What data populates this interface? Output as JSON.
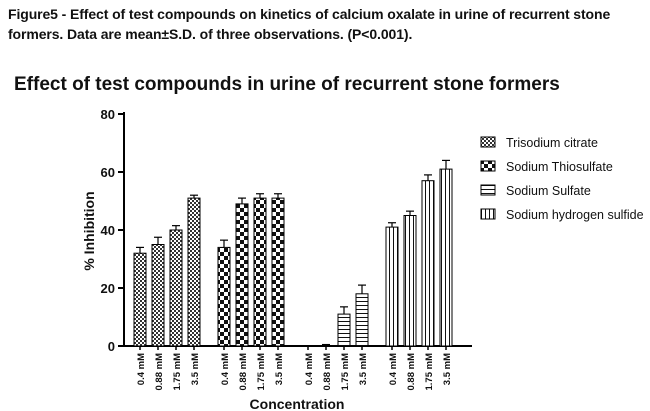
{
  "caption": {
    "line1": "Figure5 - Effect of test compounds on kinetics of calcium oxalate in urine of recurrent stone",
    "line2": "formers. Data are mean±S.D. of three observations. (P<0.001)."
  },
  "chart_data": {
    "type": "bar",
    "title": "Effect of test compounds in urine of recurrent stone formers",
    "xlabel": "Concentration",
    "ylabel": "% Inhibition",
    "ylim": [
      0,
      80
    ],
    "yticks": [
      0,
      20,
      40,
      60,
      80
    ],
    "grid": false,
    "legend_position": "right",
    "categories": [
      "0.4 mM",
      "0.88 mM",
      "1.75 mM",
      "3.5 mM"
    ],
    "series": [
      {
        "name": "Trisodium citrate",
        "pattern": "checker-fine",
        "values": [
          32,
          35,
          40,
          51
        ],
        "errors": [
          2,
          2.5,
          1.5,
          1
        ]
      },
      {
        "name": "Sodium Thiosulfate",
        "pattern": "checker-coarse",
        "values": [
          34,
          49,
          51,
          51
        ],
        "errors": [
          2.5,
          2,
          1.5,
          1.5
        ]
      },
      {
        "name": "Sodium Sulfate",
        "pattern": "horizontal-lines",
        "values": [
          0,
          0,
          11,
          18
        ],
        "errors": [
          0,
          0.5,
          2.5,
          3
        ]
      },
      {
        "name": "Sodium hydrogen sulfide",
        "pattern": "vertical-lines",
        "values": [
          41,
          45,
          57,
          61
        ],
        "errors": [
          1.5,
          1.5,
          2,
          3
        ]
      }
    ]
  }
}
